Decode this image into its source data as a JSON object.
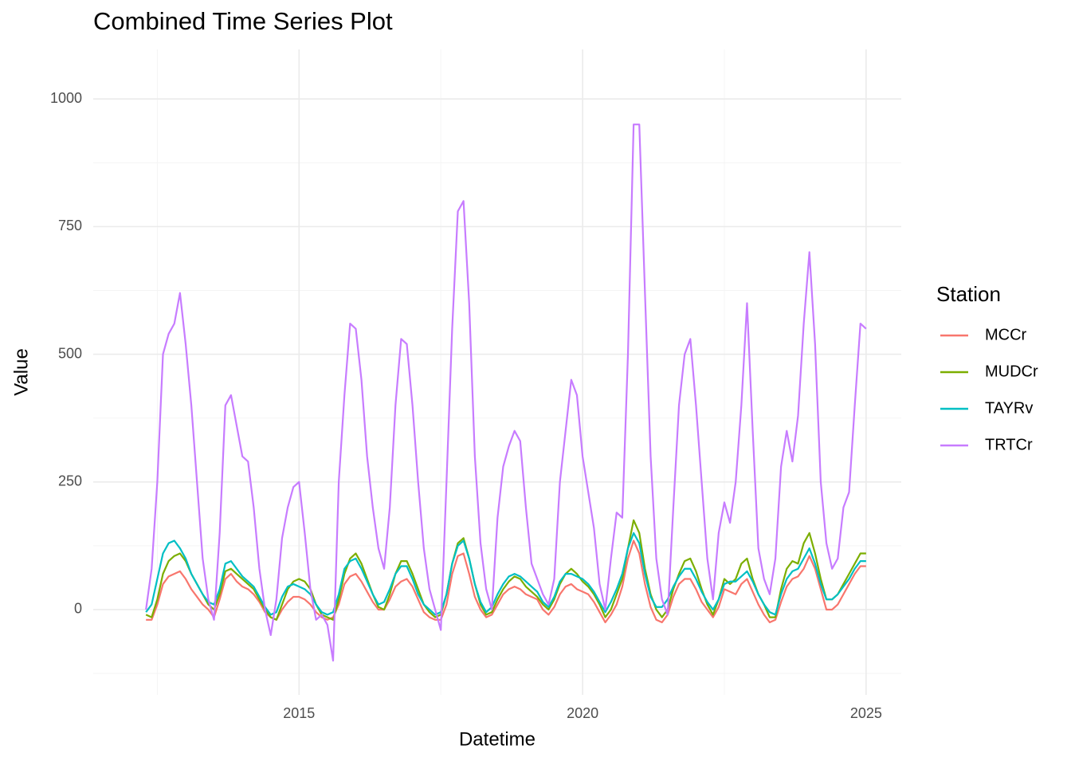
{
  "chart_data": {
    "type": "line",
    "title": "Combined Time Series Plot",
    "x_label": "Datetime",
    "y_label": "Value",
    "legend_title": "Station",
    "legend_position": "right",
    "grid": true,
    "xlim": [
      2011.37,
      2025.62
    ],
    "xticks": [
      2015,
      2020,
      2025
    ],
    "minor_xticks": [
      2012.5,
      2017.5,
      2022.5
    ],
    "ylim": [
      -167,
      1097
    ],
    "yticks": [
      0,
      250,
      500,
      750,
      1000
    ],
    "minor_yticks": [
      -125,
      125,
      375,
      625,
      875
    ],
    "x": [
      2012.3,
      2012.4,
      2012.5,
      2012.6,
      2012.7,
      2012.8,
      2012.9,
      2013.0,
      2013.1,
      2013.2,
      2013.3,
      2013.4,
      2013.5,
      2013.6,
      2013.7,
      2013.8,
      2013.9,
      2014.0,
      2014.1,
      2014.2,
      2014.3,
      2014.4,
      2014.5,
      2014.6,
      2014.7,
      2014.8,
      2014.9,
      2015.0,
      2015.1,
      2015.2,
      2015.3,
      2015.4,
      2015.5,
      2015.6,
      2015.7,
      2015.8,
      2015.9,
      2016.0,
      2016.1,
      2016.2,
      2016.3,
      2016.4,
      2016.5,
      2016.6,
      2016.7,
      2016.8,
      2016.9,
      2017.0,
      2017.1,
      2017.2,
      2017.3,
      2017.4,
      2017.5,
      2017.6,
      2017.7,
      2017.8,
      2017.9,
      2018.0,
      2018.1,
      2018.2,
      2018.3,
      2018.4,
      2018.5,
      2018.6,
      2018.7,
      2018.8,
      2018.9,
      2019.0,
      2019.1,
      2019.2,
      2019.3,
      2019.4,
      2019.5,
      2019.6,
      2019.7,
      2019.8,
      2019.9,
      2020.0,
      2020.1,
      2020.2,
      2020.3,
      2020.4,
      2020.5,
      2020.6,
      2020.7,
      2020.8,
      2020.9,
      2021.0,
      2021.1,
      2021.2,
      2021.3,
      2021.4,
      2021.5,
      2021.6,
      2021.7,
      2021.8,
      2021.9,
      2022.0,
      2022.1,
      2022.2,
      2022.3,
      2022.4,
      2022.5,
      2022.6,
      2022.7,
      2022.8,
      2022.9,
      2023.0,
      2023.1,
      2023.2,
      2023.3,
      2023.4,
      2023.5,
      2023.6,
      2023.7,
      2023.8,
      2023.9,
      2024.0,
      2024.1,
      2024.2,
      2024.3,
      2024.4,
      2024.5,
      2024.6,
      2024.7,
      2024.8,
      2024.9,
      2025.0
    ],
    "series": [
      {
        "name": "MCCr",
        "color": "#F8766D",
        "values": [
          -20,
          -20,
          10,
          50,
          65,
          70,
          75,
          60,
          40,
          25,
          10,
          0,
          -15,
          20,
          60,
          70,
          55,
          45,
          40,
          30,
          15,
          -5,
          -15,
          -20,
          0,
          15,
          25,
          25,
          20,
          10,
          -5,
          -15,
          -20,
          -15,
          10,
          50,
          65,
          70,
          55,
          35,
          15,
          0,
          0,
          20,
          45,
          55,
          60,
          45,
          20,
          -5,
          -15,
          -20,
          -20,
          10,
          70,
          105,
          110,
          70,
          25,
          0,
          -15,
          -10,
          10,
          30,
          40,
          45,
          40,
          30,
          25,
          20,
          0,
          -10,
          5,
          30,
          45,
          50,
          40,
          35,
          30,
          15,
          -5,
          -25,
          -10,
          10,
          45,
          100,
          135,
          110,
          50,
          5,
          -20,
          -25,
          -10,
          25,
          50,
          60,
          60,
          40,
          15,
          0,
          -15,
          5,
          40,
          35,
          30,
          50,
          60,
          35,
          10,
          -10,
          -25,
          -20,
          15,
          45,
          60,
          65,
          80,
          105,
          80,
          40,
          0,
          0,
          10,
          30,
          50,
          70,
          85,
          85
        ]
      },
      {
        "name": "MUDCr",
        "color": "#7CAE00",
        "values": [
          -10,
          -15,
          20,
          70,
          95,
          105,
          110,
          95,
          70,
          50,
          30,
          10,
          0,
          30,
          75,
          80,
          70,
          60,
          50,
          40,
          20,
          0,
          -15,
          -20,
          10,
          40,
          55,
          60,
          55,
          40,
          10,
          -10,
          -15,
          -20,
          20,
          70,
          100,
          110,
          90,
          60,
          30,
          5,
          0,
          30,
          70,
          95,
          95,
          70,
          40,
          10,
          -5,
          -15,
          -10,
          30,
          90,
          130,
          140,
          100,
          50,
          10,
          -10,
          -5,
          20,
          40,
          55,
          65,
          60,
          45,
          35,
          25,
          10,
          0,
          20,
          50,
          70,
          80,
          70,
          55,
          45,
          30,
          10,
          -15,
          0,
          30,
          60,
          120,
          175,
          150,
          80,
          30,
          0,
          -15,
          0,
          40,
          70,
          95,
          100,
          75,
          40,
          10,
          -10,
          20,
          60,
          50,
          60,
          90,
          100,
          60,
          30,
          10,
          -15,
          -15,
          40,
          80,
          95,
          90,
          130,
          150,
          110,
          60,
          20,
          20,
          30,
          50,
          70,
          90,
          110,
          110
        ]
      },
      {
        "name": "TAYRv",
        "color": "#00BFC4",
        "values": [
          -5,
          10,
          60,
          110,
          130,
          135,
          120,
          100,
          70,
          50,
          30,
          15,
          10,
          40,
          90,
          95,
          80,
          65,
          55,
          45,
          25,
          5,
          -10,
          -5,
          25,
          45,
          50,
          45,
          40,
          30,
          10,
          -5,
          -10,
          -5,
          30,
          80,
          95,
          100,
          80,
          55,
          30,
          10,
          15,
          40,
          70,
          85,
          85,
          60,
          30,
          10,
          0,
          -10,
          -5,
          30,
          90,
          125,
          135,
          100,
          50,
          15,
          -5,
          5,
          30,
          50,
          65,
          70,
          65,
          55,
          45,
          35,
          15,
          5,
          25,
          55,
          70,
          70,
          65,
          60,
          50,
          35,
          15,
          -5,
          15,
          40,
          70,
          120,
          150,
          130,
          70,
          25,
          5,
          5,
          20,
          45,
          65,
          80,
          80,
          60,
          35,
          15,
          0,
          20,
          50,
          55,
          55,
          65,
          75,
          55,
          30,
          10,
          -5,
          -10,
          30,
          60,
          75,
          80,
          100,
          120,
          90,
          50,
          20,
          20,
          30,
          45,
          60,
          80,
          95,
          95
        ]
      },
      {
        "name": "TRTCr",
        "color": "#C77CFF",
        "values": [
          0,
          80,
          250,
          500,
          540,
          560,
          620,
          520,
          400,
          250,
          100,
          20,
          -20,
          150,
          400,
          420,
          360,
          300,
          290,
          200,
          80,
          0,
          -50,
          20,
          140,
          200,
          240,
          250,
          150,
          40,
          -20,
          -10,
          -30,
          -100,
          250,
          420,
          560,
          550,
          450,
          300,
          200,
          120,
          80,
          200,
          400,
          530,
          520,
          400,
          250,
          120,
          40,
          0,
          -40,
          250,
          550,
          780,
          800,
          600,
          300,
          130,
          40,
          0,
          180,
          280,
          320,
          350,
          330,
          200,
          90,
          60,
          30,
          10,
          60,
          250,
          350,
          450,
          420,
          300,
          230,
          160,
          50,
          0,
          100,
          190,
          180,
          500,
          950,
          950,
          620,
          300,
          100,
          20,
          -10,
          200,
          400,
          500,
          530,
          400,
          250,
          100,
          20,
          150,
          210,
          170,
          250,
          400,
          600,
          350,
          120,
          60,
          30,
          100,
          280,
          350,
          290,
          380,
          560,
          700,
          520,
          250,
          130,
          80,
          100,
          200,
          230,
          400,
          560,
          550
        ]
      }
    ]
  }
}
